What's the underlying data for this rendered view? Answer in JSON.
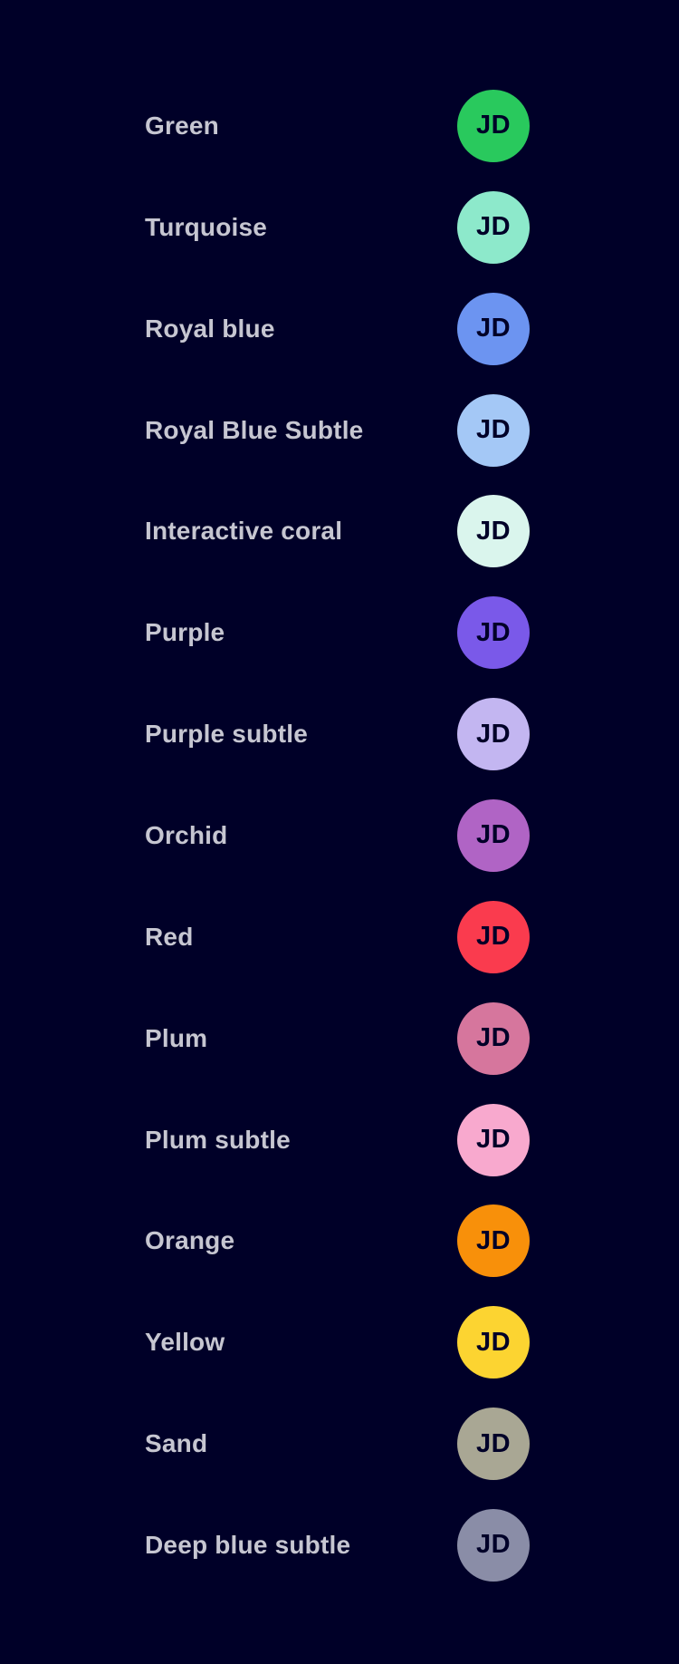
{
  "page": {
    "background": "#000028",
    "label_color": "#C6C6D1",
    "initials_color": "#000028"
  },
  "avatar_initials": "JD",
  "rows": [
    {
      "label": "Green",
      "color": "#29C95D"
    },
    {
      "label": "Turquoise",
      "color": "#8DE9CB"
    },
    {
      "label": "Royal blue",
      "color": "#6C94F1"
    },
    {
      "label": "Royal Blue Subtle",
      "color": "#A4C8F6"
    },
    {
      "label": "Interactive coral",
      "color": "#DAF5ED"
    },
    {
      "label": "Purple",
      "color": "#7A59E9"
    },
    {
      "label": "Purple subtle",
      "color": "#C3B6F1"
    },
    {
      "label": "Orchid",
      "color": "#B064C5"
    },
    {
      "label": "Red",
      "color": "#FA3B4E"
    },
    {
      "label": "Plum",
      "color": "#D6769D"
    },
    {
      "label": "Plum subtle",
      "color": "#F8A9CE"
    },
    {
      "label": "Orange",
      "color": "#F8900A"
    },
    {
      "label": "Yellow",
      "color": "#FCD431"
    },
    {
      "label": "Sand",
      "color": "#A9A794"
    },
    {
      "label": "Deep blue subtle",
      "color": "#8A8DA7"
    }
  ]
}
